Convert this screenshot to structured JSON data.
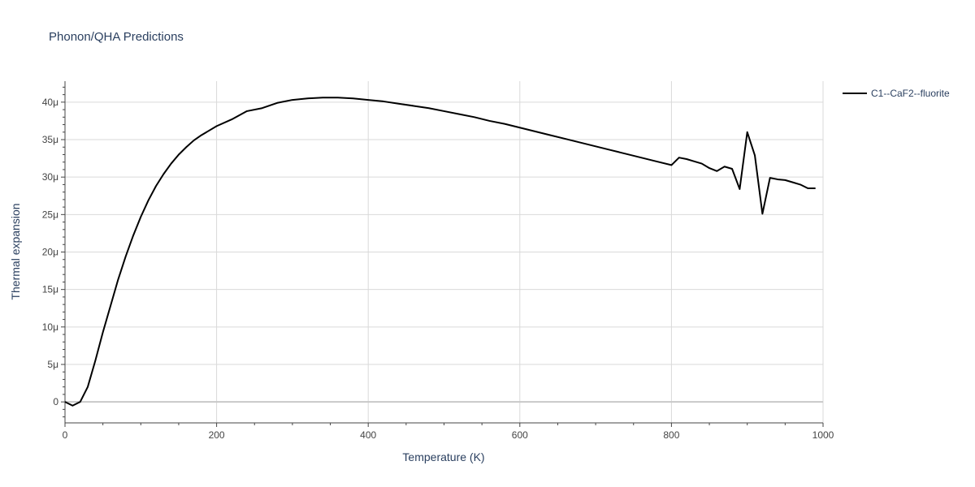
{
  "chart_data": {
    "type": "line",
    "title": "Phonon/QHA Predictions",
    "xlabel": "Temperature (K)",
    "ylabel": "Thermal expansion",
    "xlim": [
      0,
      1000
    ],
    "ylim": [
      -2.8e-06,
      4.28e-05
    ],
    "x_ticks": [
      0,
      200,
      400,
      600,
      800,
      1000
    ],
    "x_tick_labels": [
      "0",
      "200",
      "400",
      "600",
      "800",
      "1000"
    ],
    "y_ticks": [
      0,
      5e-06,
      1e-05,
      1.5e-05,
      2e-05,
      2.5e-05,
      3e-05,
      3.5e-05,
      4e-05
    ],
    "y_tick_labels": [
      "0",
      "5μ",
      "10μ",
      "15μ",
      "20μ",
      "25μ",
      "30μ",
      "35μ",
      "40μ"
    ],
    "grid": true,
    "legend": "right",
    "series": [
      {
        "name": "C1--CaF2--fluorite",
        "color": "#000000",
        "x": [
          0,
          10,
          20,
          30,
          40,
          50,
          60,
          70,
          80,
          90,
          100,
          110,
          120,
          130,
          140,
          150,
          160,
          170,
          180,
          190,
          200,
          220,
          240,
          260,
          280,
          300,
          320,
          340,
          360,
          380,
          400,
          420,
          440,
          460,
          480,
          500,
          520,
          540,
          560,
          580,
          600,
          620,
          640,
          660,
          680,
          700,
          720,
          740,
          760,
          780,
          800,
          810,
          820,
          830,
          840,
          850,
          860,
          870,
          880,
          890,
          900,
          910,
          920,
          930,
          940,
          950,
          960,
          970,
          980,
          990
        ],
        "y": [
          0,
          -5e-07,
          0,
          2e-06,
          5.5e-06,
          9.3e-06,
          1.28e-05,
          1.63e-05,
          1.94e-05,
          2.22e-05,
          2.47e-05,
          2.69e-05,
          2.88e-05,
          3.04e-05,
          3.18e-05,
          3.3e-05,
          3.4e-05,
          3.49e-05,
          3.56e-05,
          3.62e-05,
          3.68e-05,
          3.77e-05,
          3.88e-05,
          3.92e-05,
          3.99e-05,
          4.03e-05,
          4.05e-05,
          4.06e-05,
          4.06e-05,
          4.05e-05,
          4.03e-05,
          4.01e-05,
          3.98e-05,
          3.95e-05,
          3.92e-05,
          3.88e-05,
          3.84e-05,
          3.8e-05,
          3.75e-05,
          3.71e-05,
          3.66e-05,
          3.61e-05,
          3.56e-05,
          3.51e-05,
          3.46e-05,
          3.41e-05,
          3.36e-05,
          3.31e-05,
          3.26e-05,
          3.21e-05,
          3.16e-05,
          3.26e-05,
          3.24e-05,
          3.21e-05,
          3.18e-05,
          3.12e-05,
          3.08e-05,
          3.14e-05,
          3.11e-05,
          2.84e-05,
          3.6e-05,
          3.29e-05,
          2.51e-05,
          2.99e-05,
          2.97e-05,
          2.96e-05,
          2.93e-05,
          2.9e-05,
          2.85e-05,
          2.85e-05
        ]
      }
    ]
  }
}
